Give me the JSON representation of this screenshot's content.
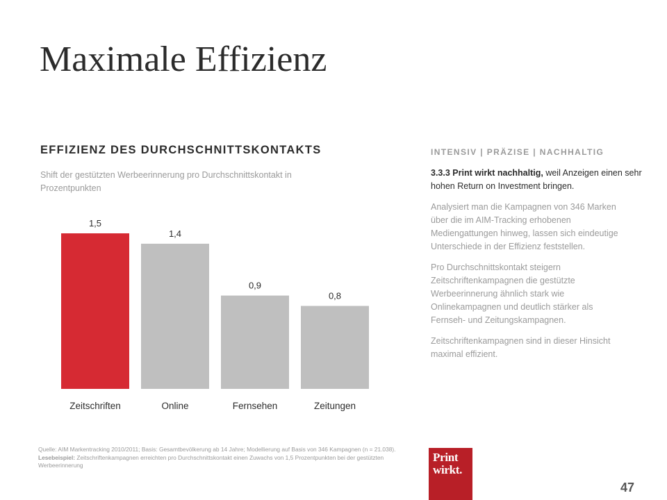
{
  "slide": {
    "title": "Maximale Effizienz",
    "page_number": "47"
  },
  "chart_section": {
    "heading": "EFFIZIENZ DES DURCHSCHNITTSKONTAKTS",
    "subtitle": "Shift der gestützten Werbeerinnerung pro Durchschnittskontakt in Prozentpunkten"
  },
  "chart_data": {
    "type": "bar",
    "categories": [
      "Zeitschriften",
      "Online",
      "Fernsehen",
      "Zeitungen"
    ],
    "values": [
      1.5,
      1.4,
      0.9,
      0.8
    ],
    "value_labels": [
      "1,5",
      "1,4",
      "0,9",
      "0,8"
    ],
    "title": "EFFIZIENZ DES DURCHSCHNITTSKONTAKTS",
    "subtitle": "Shift der gestützten Werbeerinnerung pro Durchschnittskontakt in Prozentpunkten",
    "ylim": [
      0,
      1.5
    ],
    "grid": false,
    "colors": [
      "#d62a33",
      "#bfbfbf",
      "#bfbfbf",
      "#bfbfbf"
    ]
  },
  "sidebar": {
    "kicker": "INTENSIV | PRÄZISE | NACHHALTIG",
    "lead_bold": "3.3.3 Print wirkt nachhaltig,",
    "lead_rest": " weil Anzeigen einen sehr hohen Return on Investment bringen.",
    "paragraphs": [
      "Analysiert man die Kampagnen von 346 Marken über die im AIM-Tracking erhobenen Mediengattungen hinweg, lassen sich eindeutige Unterschiede in der Effizienz feststellen.",
      "Pro Durchschnittskontakt steigern Zeitschriftenkampagnen die gestützte Werbeerinnerung ähnlich stark wie Onlinekampagnen und deutlich stärker als Fernseh- und Zeitungskampagnen.",
      "Zeitschriftenkampagnen sind in dieser Hinsicht maximal effizient."
    ]
  },
  "footer": {
    "source_a": "Quelle: AIM Markentracking 2010/2011; Basis: Gesamtbevölkerung ab 14 Jahre; Modellierung auf Basis von 346 Kampagnen (n = 21.038).",
    "source_bold": " Lesebeispiel:",
    "source_b": " Zeitschriftenkampagnen erreichten pro Durchschnittskontakt einen Zuwachs von 1,5 Prozentpunkten bei der gestützten Werbeerinnerung",
    "logo_line1": "Print",
    "logo_line2": "wirkt."
  }
}
